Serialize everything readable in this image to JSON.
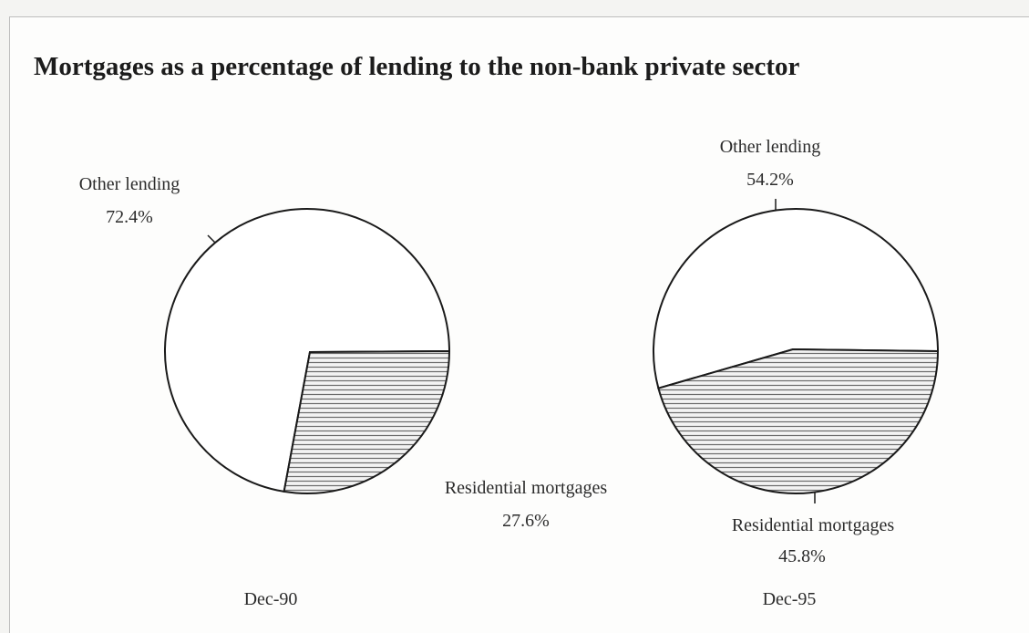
{
  "colors": {
    "background": "#fdfdfc",
    "outline": "#1a1a1a",
    "hatch": "#6a6a6a",
    "text": "#2b2b2b"
  },
  "chart_data": [
    {
      "type": "pie",
      "title": "Mortgages as a percentage of lending to the non-bank private sector",
      "category": "Dec-90",
      "slices": [
        {
          "label": "Other lending",
          "value": 72.4,
          "value_label": "72.4%",
          "fill": "plain"
        },
        {
          "label": "Residential mortgages",
          "value": 27.6,
          "value_label": "27.6%",
          "fill": "horizontal-hatch"
        }
      ]
    },
    {
      "type": "pie",
      "title": "Mortgages as a percentage of lending to the non-bank private sector",
      "category": "Dec-95",
      "slices": [
        {
          "label": "Other lending",
          "value": 54.2,
          "value_label": "54.2%",
          "fill": "plain"
        },
        {
          "label": "Residential mortgages",
          "value": 45.8,
          "value_label": "45.8%",
          "fill": "horizontal-hatch"
        }
      ]
    }
  ]
}
